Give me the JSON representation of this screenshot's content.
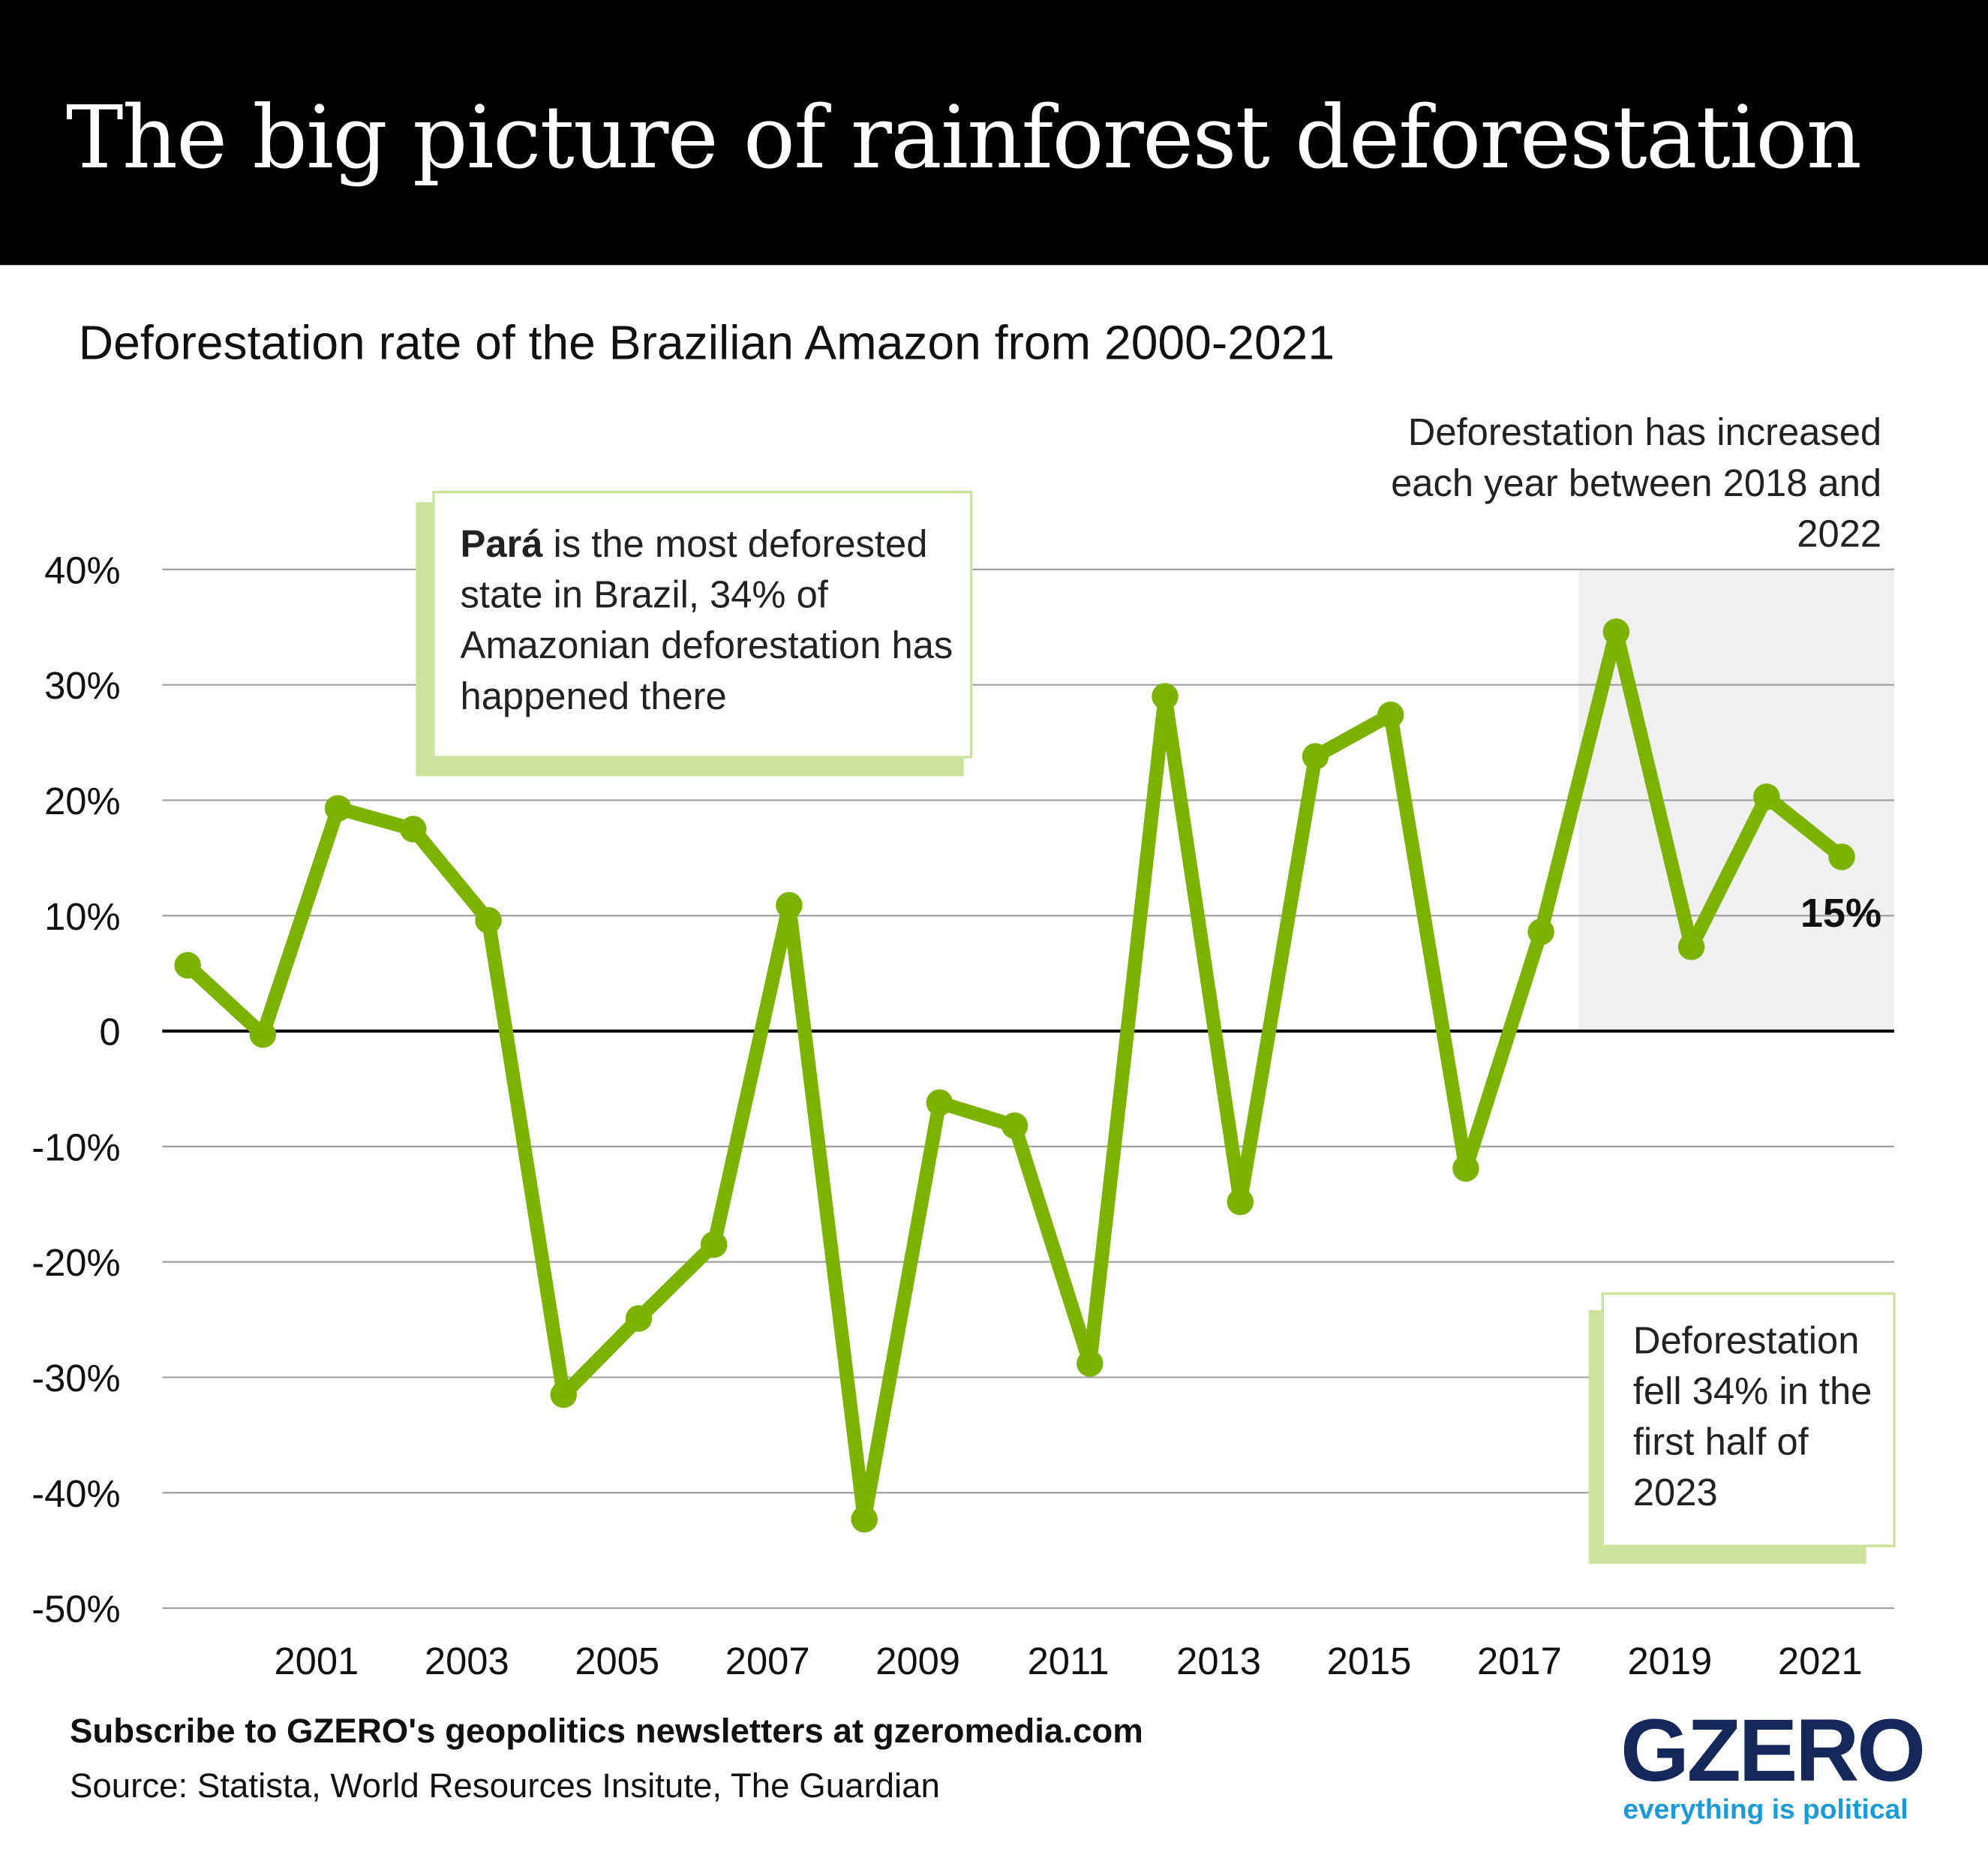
{
  "header": {
    "title": "The big picture of rainforest deforestation"
  },
  "subtitle": "Deforestation rate of the Brazilian Amazon from 2000-2021",
  "annotations": {
    "para_bold": "Pará",
    "para_rest": " is the most deforested state in Brazil, 34% of Amazonian deforestation has happened there",
    "increase": "Deforestation has increased each year between 2018 and 2022",
    "fell": "Deforestation fell 34% in the first half of 2023",
    "last_label": "15%"
  },
  "footer": {
    "cta": "Subscribe to GZERO's geopolitics newsletters at gzeromedia.com",
    "source": "Source: Statista, World Resources Insitute, The Guardian",
    "logo": "GZERO",
    "tagline": "everything is political"
  },
  "colors": {
    "line": "#7db300",
    "highlight": "#f0f0f0",
    "callout": "#cde29b",
    "logo": "#16285a",
    "tagline": "#1a9ad6"
  },
  "chart_data": {
    "type": "line",
    "title": "Deforestation rate of the Brazilian Amazon from 2000-2021",
    "x": [
      1999,
      2000,
      2001,
      2002,
      2003,
      2004,
      2005,
      2006,
      2007,
      2008,
      2009,
      2010,
      2011,
      2012,
      2013,
      2014,
      2015,
      2016,
      2017,
      2018,
      2019,
      2020,
      2021
    ],
    "values": [
      5.7,
      -0.3,
      19.3,
      17.5,
      9.6,
      -31.5,
      -24.9,
      -18.5,
      10.9,
      -42.3,
      -6.2,
      -8.2,
      -28.8,
      29.0,
      -14.8,
      23.8,
      27.4,
      -11.9,
      8.6,
      34.6,
      7.3,
      20.3,
      15.1
    ],
    "x_tick_labels": [
      "2001",
      "2003",
      "2005",
      "2007",
      "2009",
      "2011",
      "2013",
      "2015",
      "2017",
      "2019",
      "2021"
    ],
    "y_ticks": [
      40,
      30,
      20,
      10,
      0,
      -10,
      -20,
      -30,
      -40,
      -50
    ],
    "y_tick_labels": [
      "40%",
      "30%",
      "20%",
      "10%",
      "0",
      "-10%",
      "-20%",
      "-30%",
      "-40%",
      "-50%"
    ],
    "ylim": [
      -50,
      40
    ],
    "grid": true,
    "highlight_range": [
      2018,
      2022
    ],
    "unit": "%"
  }
}
